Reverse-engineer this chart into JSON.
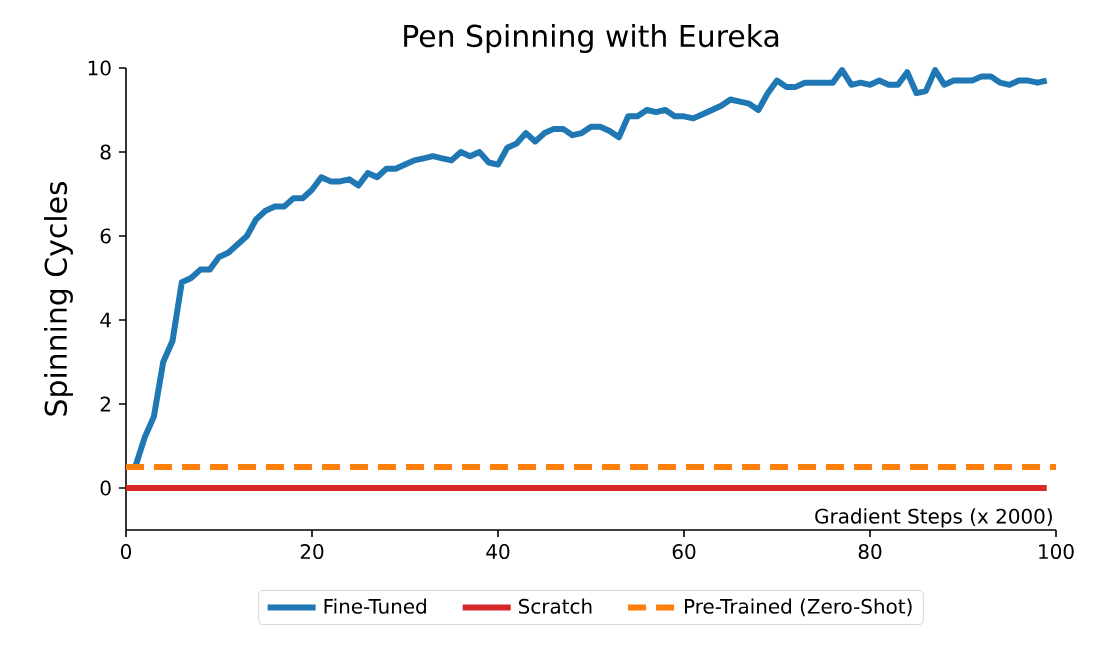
{
  "chart_data": {
    "type": "line",
    "title": "Pen Spinning with Eureka",
    "xlabel": "Gradient Steps (x 2000)",
    "ylabel": "Spinning Cycles",
    "xlim": [
      0,
      100
    ],
    "ylim": [
      -1,
      10
    ],
    "xticks": [
      0,
      20,
      40,
      60,
      80,
      100
    ],
    "yticks": [
      0,
      2,
      4,
      6,
      8,
      10
    ],
    "grid": false,
    "legend": "bottom",
    "marker": "none",
    "series": [
      {
        "name": "Fine-Tuned",
        "color": "#1f77b4",
        "line_style": "solid",
        "x": [
          1,
          2,
          3,
          4,
          5,
          6,
          7,
          8,
          9,
          10,
          11,
          12,
          13,
          14,
          15,
          16,
          17,
          18,
          19,
          20,
          21,
          22,
          23,
          24,
          25,
          26,
          27,
          28,
          29,
          30,
          31,
          32,
          33,
          34,
          35,
          36,
          37,
          38,
          39,
          40,
          41,
          42,
          43,
          44,
          45,
          46,
          47,
          48,
          49,
          50,
          51,
          52,
          53,
          54,
          55,
          56,
          57,
          58,
          59,
          60,
          61,
          62,
          63,
          64,
          65,
          66,
          67,
          68,
          69,
          70,
          71,
          72,
          73,
          74,
          75,
          76,
          77,
          78,
          79,
          80,
          81,
          82,
          83,
          84,
          85,
          86,
          87,
          88,
          89,
          90,
          91,
          92,
          93,
          94,
          95,
          96,
          97,
          98,
          99
        ],
        "values": [
          0.5,
          1.2,
          1.7,
          3.0,
          3.5,
          4.9,
          5.0,
          5.2,
          5.2,
          5.5,
          5.6,
          5.8,
          6.0,
          6.4,
          6.6,
          6.7,
          6.7,
          6.9,
          6.9,
          7.1,
          7.4,
          7.3,
          7.3,
          7.35,
          7.2,
          7.5,
          7.4,
          7.6,
          7.6,
          7.7,
          7.8,
          7.85,
          7.9,
          7.85,
          7.8,
          8.0,
          7.9,
          8.0,
          7.75,
          7.7,
          8.1,
          8.2,
          8.45,
          8.25,
          8.45,
          8.55,
          8.55,
          8.4,
          8.45,
          8.6,
          8.6,
          8.5,
          8.35,
          8.85,
          8.85,
          9.0,
          8.95,
          9.0,
          8.85,
          8.85,
          8.8,
          8.9,
          9.0,
          9.1,
          9.25,
          9.2,
          9.15,
          9.0,
          9.4,
          9.7,
          9.55,
          9.55,
          9.65,
          9.65,
          9.65,
          9.65,
          9.95,
          9.6,
          9.65,
          9.6,
          9.7,
          9.6,
          9.6,
          9.9,
          9.4,
          9.45,
          9.95,
          9.6,
          9.7,
          9.7,
          9.7,
          9.8,
          9.8,
          9.65,
          9.6,
          9.7,
          9.7,
          9.65,
          9.7
        ]
      },
      {
        "name": "Scratch",
        "color": "#d62728",
        "line_style": "solid",
        "x": [
          0,
          99
        ],
        "values": [
          0,
          0
        ]
      },
      {
        "name": "Pre-Trained (Zero-Shot)",
        "color": "#ff7f0e",
        "line_style": "dashed",
        "x": [
          0,
          100
        ],
        "values": [
          0.5,
          0.5
        ]
      }
    ]
  }
}
